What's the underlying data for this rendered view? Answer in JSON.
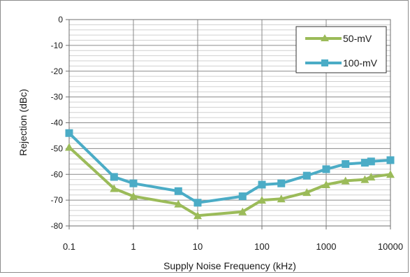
{
  "chart_data": {
    "type": "line",
    "title": "",
    "xlabel": "Supply Noise Frequency (kHz)",
    "ylabel": "Rejection (dBc)",
    "x_scale": "log",
    "xlim": [
      0.1,
      10000
    ],
    "ylim": [
      -80,
      0
    ],
    "grid": true,
    "legend_position": "top-right",
    "x_ticks": [
      {
        "value": 0.1,
        "label": "0.1"
      },
      {
        "value": 1,
        "label": "1"
      },
      {
        "value": 10,
        "label": "10"
      },
      {
        "value": 100,
        "label": "100"
      },
      {
        "value": 1000,
        "label": "1000"
      },
      {
        "value": 10000,
        "label": "10000"
      }
    ],
    "y_ticks": [
      {
        "value": 0,
        "label": "0"
      },
      {
        "value": -10,
        "label": "-10"
      },
      {
        "value": -20,
        "label": "-20"
      },
      {
        "value": -30,
        "label": "-30"
      },
      {
        "value": -40,
        "label": "-40"
      },
      {
        "value": -50,
        "label": "-50"
      },
      {
        "value": -60,
        "label": "-60"
      },
      {
        "value": -70,
        "label": "-70"
      },
      {
        "value": -80,
        "label": "-80"
      }
    ],
    "series": [
      {
        "name": "50-mV",
        "color": "#9bbb59",
        "marker": "triangle",
        "x": [
          0.1,
          0.5,
          1,
          5,
          10,
          50,
          100,
          200,
          500,
          1000,
          2000,
          4000,
          5000,
          10000
        ],
        "y": [
          -49.5,
          -65.5,
          -68.5,
          -71.5,
          -76,
          -74.5,
          -70,
          -69.5,
          -67,
          -64,
          -62.5,
          -62,
          -61,
          -60
        ]
      },
      {
        "name": "100-mV",
        "color": "#4bacc6",
        "marker": "square",
        "x": [
          0.1,
          0.5,
          1,
          5,
          10,
          50,
          100,
          200,
          500,
          1000,
          2000,
          4000,
          5000,
          10000
        ],
        "y": [
          -44,
          -61,
          -63.5,
          -66.5,
          -71,
          -68.5,
          -64,
          -63.5,
          -60.5,
          -58,
          -56,
          -55.5,
          -55,
          -54.5
        ]
      }
    ]
  }
}
